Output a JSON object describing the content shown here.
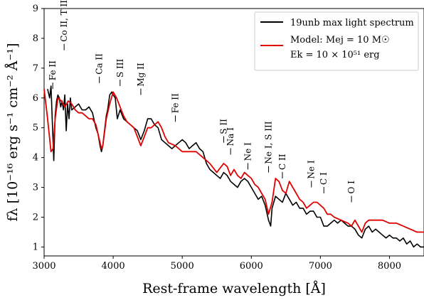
{
  "chart_data": {
    "type": "line",
    "title": "",
    "xlabel": "Rest-frame wavelength [Å]",
    "ylabel": "fλ [10⁻¹⁶ erg s⁻¹ cm⁻² Å⁻¹]",
    "xlim": [
      3000,
      8500
    ],
    "ylim": [
      0.7,
      9
    ],
    "xticks": [
      3000,
      4000,
      5000,
      6000,
      7000,
      8000
    ],
    "yticks": [
      1,
      2,
      3,
      4,
      5,
      6,
      7,
      8,
      9
    ],
    "grid": false,
    "legend_position": "top-right",
    "legend": {
      "observed": "19unb max light spectrum",
      "model_line1": "Model: Mej = 10 M☉",
      "model_line2": "Ek = 10 × 10⁵¹ erg"
    },
    "series": [
      {
        "name": "19unb max light spectrum",
        "color": "#000000",
        "x": [
          3050,
          3080,
          3100,
          3120,
          3140,
          3160,
          3180,
          3200,
          3220,
          3240,
          3260,
          3280,
          3300,
          3320,
          3340,
          3360,
          3380,
          3400,
          3450,
          3500,
          3550,
          3600,
          3650,
          3700,
          3750,
          3780,
          3810,
          3830,
          3850,
          3880,
          3900,
          3920,
          3950,
          3980,
          4000,
          4030,
          4060,
          4100,
          4150,
          4200,
          4250,
          4300,
          4350,
          4400,
          4450,
          4500,
          4550,
          4600,
          4650,
          4700,
          4750,
          4800,
          4850,
          4900,
          4950,
          5000,
          5050,
          5100,
          5150,
          5200,
          5250,
          5300,
          5350,
          5400,
          5450,
          5500,
          5550,
          5600,
          5650,
          5700,
          5750,
          5800,
          5850,
          5900,
          5950,
          6000,
          6050,
          6100,
          6150,
          6200,
          6250,
          6280,
          6300,
          6350,
          6400,
          6450,
          6500,
          6550,
          6600,
          6650,
          6700,
          6750,
          6800,
          6850,
          6900,
          6950,
          7000,
          7050,
          7100,
          7150,
          7200,
          7250,
          7300,
          7350,
          7400,
          7450,
          7500,
          7550,
          7600,
          7650,
          7700,
          7750,
          7800,
          7850,
          7900,
          7950,
          8000,
          8050,
          8100,
          8150,
          8200,
          8250,
          8300,
          8350,
          8400,
          8450,
          8500
        ],
        "y": [
          6.3,
          6.0,
          6.4,
          5.1,
          3.9,
          5.4,
          5.9,
          6.1,
          6.0,
          5.7,
          5.9,
          5.6,
          6.1,
          4.9,
          5.8,
          5.3,
          6.0,
          5.6,
          5.7,
          5.8,
          5.6,
          5.6,
          5.7,
          5.5,
          5.0,
          4.8,
          4.4,
          4.2,
          4.4,
          5.0,
          5.4,
          5.6,
          6.1,
          6.2,
          6.1,
          6.0,
          5.3,
          5.6,
          5.3,
          5.2,
          5.1,
          5.0,
          4.9,
          4.6,
          4.9,
          5.3,
          5.3,
          5.1,
          5.0,
          4.6,
          4.5,
          4.4,
          4.3,
          4.4,
          4.5,
          4.6,
          4.5,
          4.3,
          4.4,
          4.5,
          4.3,
          4.2,
          3.8,
          3.6,
          3.5,
          3.4,
          3.3,
          3.5,
          3.4,
          3.2,
          3.1,
          3.0,
          3.2,
          3.3,
          3.2,
          3.0,
          2.8,
          2.6,
          2.7,
          2.4,
          1.9,
          1.7,
          2.3,
          2.7,
          2.6,
          2.5,
          2.8,
          2.6,
          2.4,
          2.5,
          2.3,
          2.3,
          2.1,
          2.2,
          2.2,
          2.0,
          2.0,
          1.7,
          1.7,
          1.8,
          1.9,
          1.8,
          1.9,
          1.8,
          1.7,
          1.7,
          1.6,
          1.4,
          1.3,
          1.6,
          1.7,
          1.5,
          1.6,
          1.5,
          1.4,
          1.3,
          1.4,
          1.3,
          1.3,
          1.2,
          1.3,
          1.1,
          1.2,
          1.0,
          1.1,
          1.0,
          1.0
        ]
      },
      {
        "name": "Model: Mej = 10 M☉",
        "color": "#e00000",
        "x": [
          3000,
          3050,
          3100,
          3130,
          3160,
          3200,
          3250,
          3300,
          3350,
          3400,
          3450,
          3500,
          3550,
          3600,
          3650,
          3700,
          3750,
          3800,
          3830,
          3850,
          3900,
          3950,
          4000,
          4050,
          4100,
          4150,
          4200,
          4250,
          4300,
          4350,
          4400,
          4450,
          4500,
          4550,
          4600,
          4650,
          4700,
          4750,
          4800,
          4900,
          5000,
          5100,
          5200,
          5300,
          5400,
          5500,
          5600,
          5650,
          5700,
          5750,
          5800,
          5850,
          5900,
          5950,
          6000,
          6050,
          6100,
          6150,
          6200,
          6250,
          6300,
          6350,
          6400,
          6450,
          6500,
          6550,
          6600,
          6650,
          6700,
          6750,
          6800,
          6850,
          6900,
          6950,
          7000,
          7050,
          7100,
          7150,
          7200,
          7300,
          7400,
          7450,
          7500,
          7550,
          7600,
          7650,
          7700,
          7800,
          7900,
          8000,
          8100,
          8200,
          8300,
          8400,
          8500
        ],
        "y": [
          6.3,
          5.3,
          4.2,
          4.3,
          5.3,
          6.0,
          5.9,
          5.7,
          5.9,
          5.8,
          5.6,
          5.5,
          5.5,
          5.4,
          5.3,
          5.3,
          5.1,
          4.6,
          4.3,
          4.4,
          5.3,
          5.8,
          6.2,
          6.0,
          5.7,
          5.4,
          5.2,
          5.1,
          5.0,
          4.7,
          4.4,
          4.7,
          5.0,
          5.0,
          5.1,
          5.2,
          5.0,
          4.7,
          4.5,
          4.4,
          4.2,
          4.2,
          4.2,
          4.0,
          3.8,
          3.5,
          3.8,
          3.7,
          3.4,
          3.6,
          3.4,
          3.3,
          3.5,
          3.4,
          3.3,
          3.1,
          3.0,
          2.8,
          2.6,
          2.1,
          2.5,
          3.3,
          3.2,
          2.9,
          2.8,
          3.2,
          3.0,
          2.8,
          2.6,
          2.5,
          2.3,
          2.4,
          2.5,
          2.5,
          2.4,
          2.3,
          2.1,
          2.1,
          2.0,
          1.9,
          1.8,
          1.7,
          1.9,
          1.7,
          1.5,
          1.8,
          1.9,
          1.9,
          1.9,
          1.8,
          1.8,
          1.7,
          1.6,
          1.5,
          1.5
        ]
      }
    ],
    "annotations": [
      {
        "x": 3125,
        "y": 6.3,
        "label": "Fe II"
      },
      {
        "x": 3290,
        "y": 7.6,
        "label": "Co II, T III"
      },
      {
        "x": 3800,
        "y": 6.5,
        "label": "Ca II"
      },
      {
        "x": 4100,
        "y": 6.4,
        "label": "S III"
      },
      {
        "x": 4400,
        "y": 6.1,
        "label": "Mg II"
      },
      {
        "x": 4900,
        "y": 5.2,
        "label": "Fe II"
      },
      {
        "x": 5600,
        "y": 4.5,
        "label": "S II"
      },
      {
        "x": 5700,
        "y": 4.1,
        "label": "Na I"
      },
      {
        "x": 5950,
        "y": 3.6,
        "label": "Ne I"
      },
      {
        "x": 6250,
        "y": 3.5,
        "label": "Ne I, S III"
      },
      {
        "x": 6450,
        "y": 3.3,
        "label": "C II"
      },
      {
        "x": 6870,
        "y": 3.0,
        "label": "Ne I"
      },
      {
        "x": 7050,
        "y": 2.8,
        "label": "C I"
      },
      {
        "x": 7450,
        "y": 2.5,
        "label": "O I"
      }
    ]
  }
}
